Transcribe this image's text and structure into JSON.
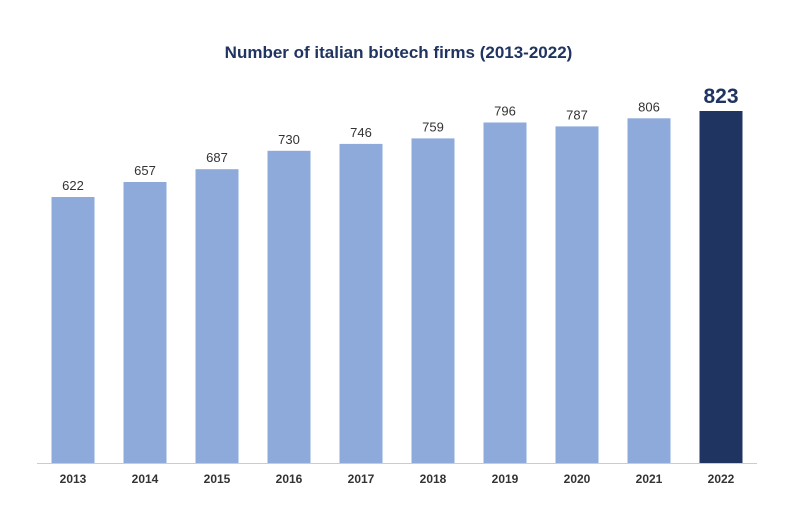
{
  "chart_data": {
    "type": "bar",
    "title": "Number of italian biotech firms (2013-2022)",
    "categories": [
      "2013",
      "2014",
      "2015",
      "2016",
      "2017",
      "2018",
      "2019",
      "2020",
      "2021",
      "2022"
    ],
    "values": [
      622,
      657,
      687,
      730,
      746,
      759,
      796,
      787,
      806,
      823
    ],
    "value_labels": [
      "622",
      "657",
      "687",
      "730",
      "746",
      "759",
      "796",
      "787",
      "806",
      "823"
    ],
    "highlight_category": "2022",
    "ylim": [
      0,
      823
    ],
    "grid": false,
    "legend": "none",
    "colors": {
      "bar": "#8eaadb",
      "highlight_bar": "#1f3460",
      "title": "#1f3460",
      "axis": "#cccccc"
    }
  }
}
